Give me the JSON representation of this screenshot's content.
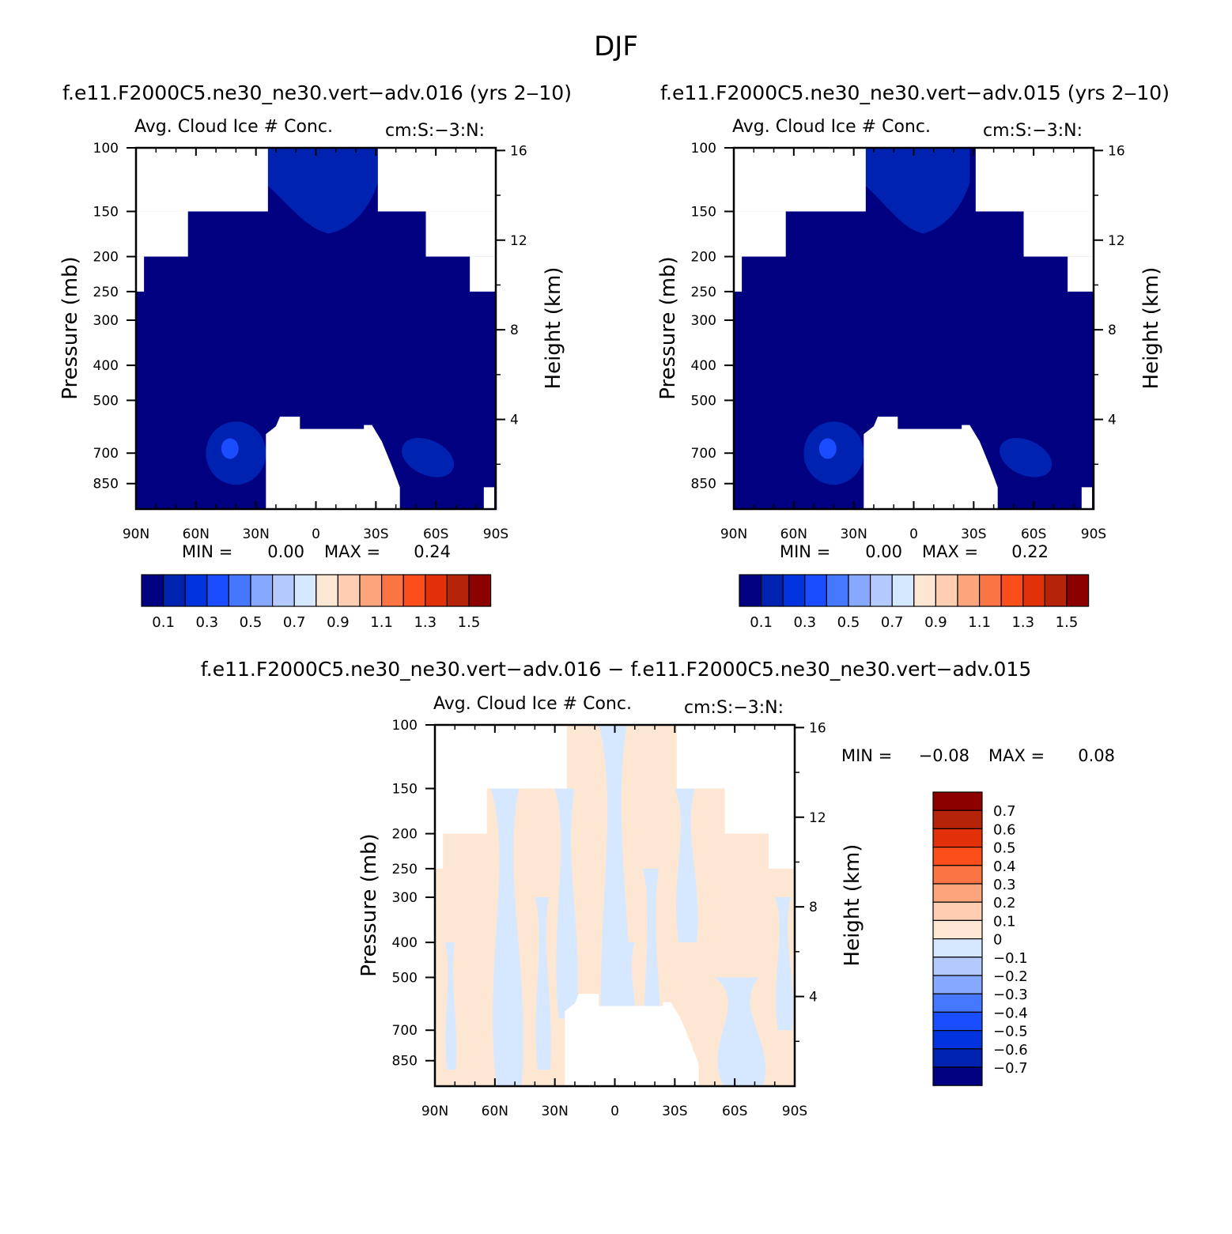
{
  "figure": {
    "title": "DJF"
  },
  "colors": {
    "abs_levels": [
      "#000080",
      "#0022b0",
      "#0033dd",
      "#1a4dff",
      "#4678ff",
      "#86a8ff",
      "#b4caff",
      "#d6e8ff",
      "#fee7d2",
      "#fecdb2",
      "#fca47b",
      "#fb7444",
      "#fc4e1b",
      "#e23008",
      "#b52308",
      "#8c0000"
    ],
    "diff_levels": [
      "#000080",
      "#0022b0",
      "#0033dd",
      "#1a4dff",
      "#4678ff",
      "#86a8ff",
      "#b4caff",
      "#d6e8ff",
      "#fee7d2",
      "#fecdb2",
      "#fca47b",
      "#fb7444",
      "#fc4e1b",
      "#e23008",
      "#b52308",
      "#8c0000"
    ]
  },
  "chart_data": [
    {
      "type": "heatmap",
      "panel_title": "f.e11.F2000C5.ne30_ne30.vert−adv.016 (yrs 2‒10)",
      "title": "Avg. Cloud Ice # Conc.",
      "units": "cm:S:−3:N:",
      "ylabel": "Pressure (mb)",
      "ylabel_right": "Height (km)",
      "x_ticks": [
        "90N",
        "60N",
        "30N",
        "0",
        "30S",
        "60S",
        "90S"
      ],
      "y_ticks": [
        "100",
        "150",
        "200",
        "250",
        "300",
        "400",
        "500",
        "700",
        "850"
      ],
      "y_right_ticks": [
        "16",
        "12",
        "8",
        "4"
      ],
      "xlim": [
        90,
        -90
      ],
      "ylim": [
        1000,
        100
      ],
      "min_label": "MIN =",
      "min_value": "0.00",
      "max_label": "MAX =",
      "max_value": "0.24",
      "colorbar": {
        "labels": [
          "0.1",
          "0.3",
          "0.5",
          "0.7",
          "0.9",
          "1.1",
          "1.3",
          "1.5"
        ],
        "bounds": [
          0.1,
          0.2,
          0.3,
          0.4,
          0.5,
          0.6,
          0.7,
          0.8,
          0.9,
          1.0,
          1.1,
          1.2,
          1.3,
          1.4,
          1.5
        ]
      },
      "background_value": 0.05,
      "features": [
        {
          "lat_from": 24,
          "lat_to": -31,
          "p_top": 100,
          "p_bottom": 150,
          "value": 0.15
        },
        {
          "lat_center": 40,
          "p_center": 700,
          "value": 0.15
        },
        {
          "lat_center": 43,
          "p_center": 680,
          "value": 0.24
        },
        {
          "lat_center": -56,
          "p_center": 720,
          "value": 0.15
        }
      ]
    },
    {
      "type": "heatmap",
      "panel_title": "f.e11.F2000C5.ne30_ne30.vert−adv.015 (yrs 2‒10)",
      "title": "Avg. Cloud Ice # Conc.",
      "units": "cm:S:−3:N:",
      "ylabel": "Pressure (mb)",
      "ylabel_right": "Height (km)",
      "x_ticks": [
        "90N",
        "60N",
        "30N",
        "0",
        "30S",
        "60S",
        "90S"
      ],
      "y_ticks": [
        "100",
        "150",
        "200",
        "250",
        "300",
        "400",
        "500",
        "700",
        "850"
      ],
      "y_right_ticks": [
        "16",
        "12",
        "8",
        "4"
      ],
      "xlim": [
        90,
        -90
      ],
      "ylim": [
        1000,
        100
      ],
      "min_label": "MIN =",
      "min_value": "0.00",
      "max_label": "MAX =",
      "max_value": "0.22",
      "colorbar": {
        "labels": [
          "0.1",
          "0.3",
          "0.5",
          "0.7",
          "0.9",
          "1.1",
          "1.3",
          "1.5"
        ],
        "bounds": [
          0.1,
          0.2,
          0.3,
          0.4,
          0.5,
          0.6,
          0.7,
          0.8,
          0.9,
          1.0,
          1.1,
          1.2,
          1.3,
          1.4,
          1.5
        ]
      },
      "background_value": 0.05,
      "features": [
        {
          "lat_from": 24,
          "lat_to": -28,
          "p_top": 100,
          "p_bottom": 150,
          "value": 0.15
        },
        {
          "lat_center": 40,
          "p_center": 700,
          "value": 0.15
        },
        {
          "lat_center": 43,
          "p_center": 680,
          "value": 0.22
        },
        {
          "lat_center": -56,
          "p_center": 720,
          "value": 0.15
        }
      ]
    },
    {
      "type": "heatmap",
      "panel_title": "f.e11.F2000C5.ne30_ne30.vert−adv.016 − f.e11.F2000C5.ne30_ne30.vert−adv.015",
      "title": "Avg. Cloud Ice # Conc.",
      "units": "cm:S:−3:N:",
      "ylabel": "Pressure (mb)",
      "ylabel_right": "Height (km)",
      "x_ticks": [
        "90N",
        "60N",
        "30N",
        "0",
        "30S",
        "60S",
        "90S"
      ],
      "y_ticks": [
        "100",
        "150",
        "200",
        "250",
        "300",
        "400",
        "500",
        "700",
        "850"
      ],
      "y_right_ticks": [
        "16",
        "12",
        "8",
        "4"
      ],
      "xlim": [
        90,
        -90
      ],
      "ylim": [
        1000,
        100
      ],
      "min_label": "MIN =",
      "min_value": "−0.08",
      "max_label": "MAX =",
      "max_value": "0.08",
      "colorbar": {
        "labels": [
          "0.7",
          "0.6",
          "0.5",
          "0.4",
          "0.3",
          "0.2",
          "0.1",
          "0",
          "−0.1",
          "−0.2",
          "−0.3",
          "−0.4",
          "−0.5",
          "−0.6",
          "−0.7"
        ],
        "bounds": [
          -0.7,
          -0.6,
          -0.5,
          -0.4,
          -0.3,
          -0.2,
          -0.1,
          0,
          0.1,
          0.2,
          0.3,
          0.4,
          0.5,
          0.6,
          0.7
        ]
      },
      "value_range": [
        -0.08,
        0.08
      ]
    }
  ]
}
